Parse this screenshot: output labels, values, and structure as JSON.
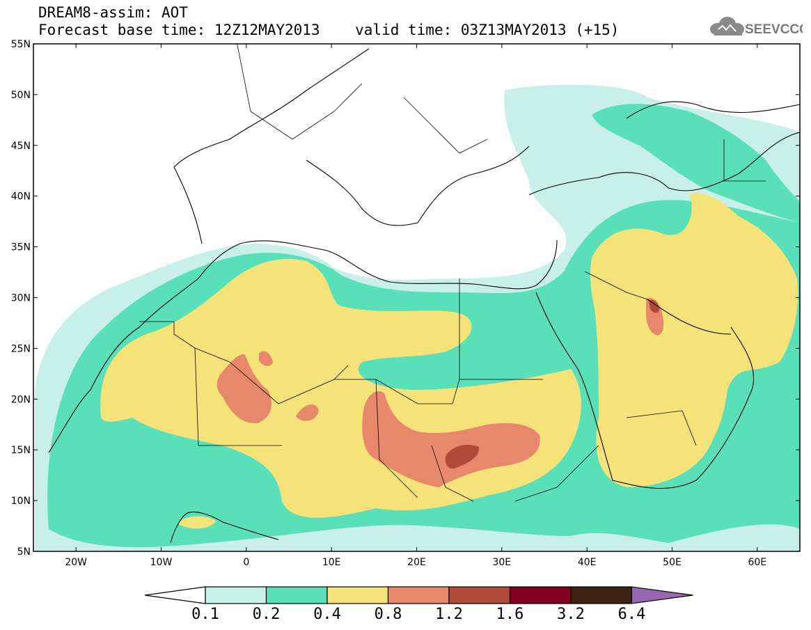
{
  "header": {
    "title_line1": "DREAM8-assim: AOT",
    "title_line2": "Forecast base time: 12Z12MAY2013    valid time: 03Z13MAY2013 (+15)",
    "logo_text": "SEEVCCC"
  },
  "map": {
    "lat_labels": [
      "55N",
      "50N",
      "45N",
      "40N",
      "35N",
      "30N",
      "25N",
      "20N",
      "15N",
      "10N",
      "5N"
    ],
    "lon_labels": [
      "20W",
      "10W",
      "0",
      "10E",
      "20E",
      "30E",
      "40E",
      "50E",
      "60E"
    ],
    "lat_range": [
      5,
      55
    ],
    "lon_range": [
      -25,
      65
    ],
    "coastline_color": "#000000"
  },
  "legend": {
    "breaks": [
      "0.1",
      "0.2",
      "0.4",
      "0.8",
      "1.2",
      "1.6",
      "3.2",
      "6.4"
    ],
    "colors": [
      "#c8f0e8",
      "#5ae0b8",
      "#f5e37a",
      "#e8886a",
      "#b04a3a",
      "#800020",
      "#3c2010",
      "#9a68b0"
    ],
    "under_color": "#ffffff"
  }
}
